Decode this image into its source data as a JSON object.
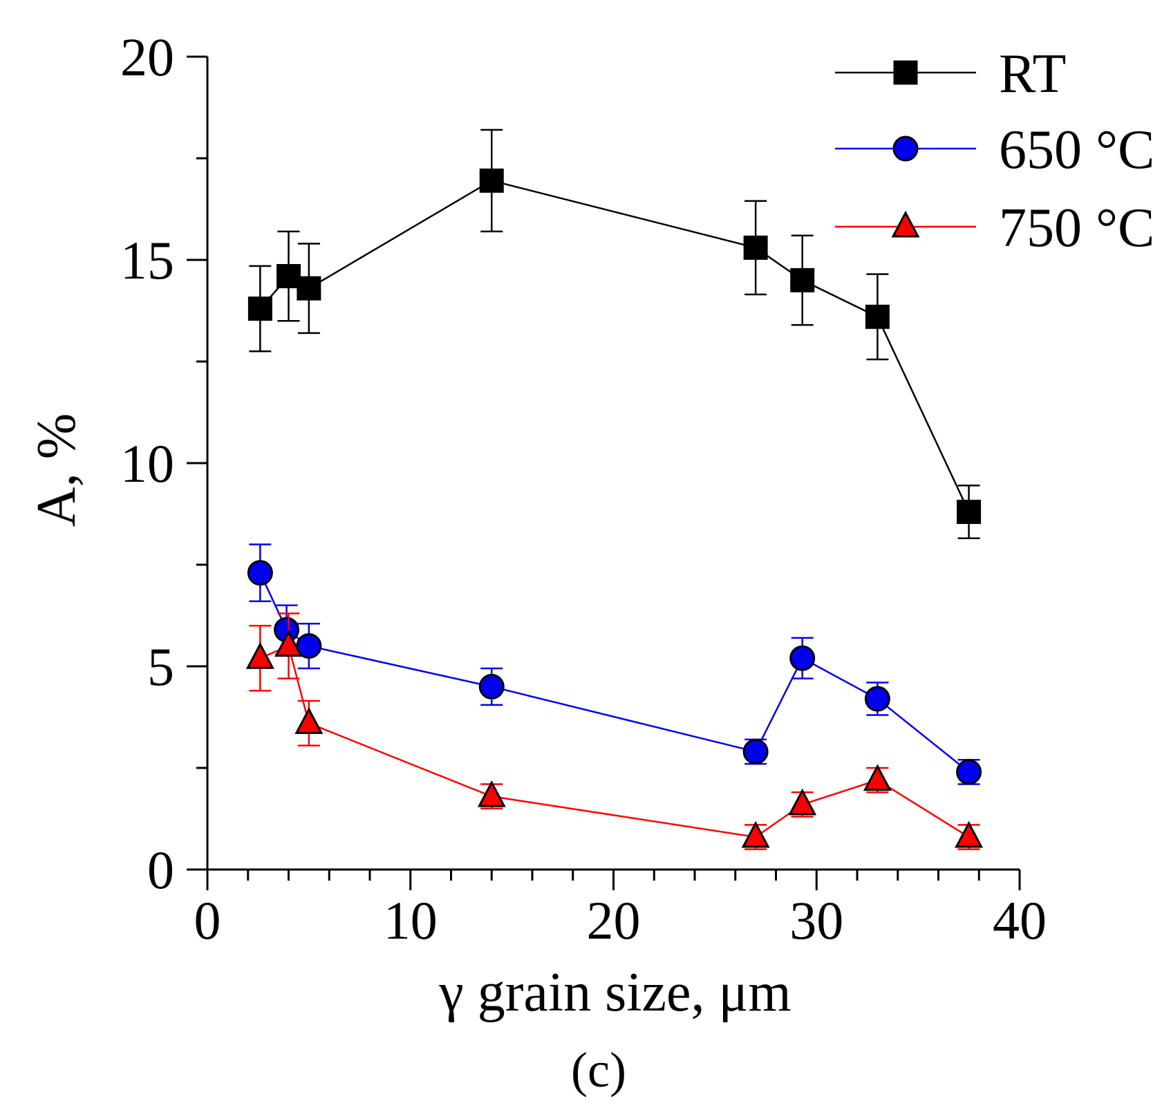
{
  "chart_data": {
    "type": "line",
    "title": "",
    "xlabel": "γ grain size, μm",
    "ylabel": "A, %",
    "panel_label": "(c)",
    "xlim": [
      0,
      40
    ],
    "ylim": [
      0,
      20
    ],
    "x_ticks": [
      "0",
      "10",
      "20",
      "30",
      "40"
    ],
    "y_ticks": [
      "0",
      "5",
      "10",
      "15",
      "20"
    ],
    "x_minor_step": 2,
    "y_minor_step": 2.5,
    "legend_position": "top-right",
    "series": [
      {
        "name": "RT",
        "color": "#000000",
        "marker": "square",
        "x": [
          2.6,
          4.0,
          5.0,
          14.0,
          27.0,
          29.3,
          33.0,
          37.5
        ],
        "y": [
          13.8,
          14.6,
          14.3,
          16.95,
          15.3,
          14.5,
          13.6,
          8.8
        ],
        "err": [
          1.05,
          1.1,
          1.1,
          1.25,
          1.15,
          1.1,
          1.05,
          0.65
        ]
      },
      {
        "name": "650 °C",
        "color": "#0000ee",
        "marker": "circle",
        "x": [
          2.6,
          3.9,
          5.0,
          14.0,
          27.0,
          29.3,
          33.0,
          37.5
        ],
        "y": [
          7.3,
          5.9,
          5.5,
          4.5,
          2.9,
          5.2,
          4.2,
          2.4
        ],
        "err": [
          0.7,
          0.6,
          0.55,
          0.45,
          0.3,
          0.5,
          0.4,
          0.3
        ]
      },
      {
        "name": "750 °C",
        "color": "#ff0000",
        "marker": "triangle",
        "x": [
          2.6,
          4.0,
          5.0,
          14.0,
          27.0,
          29.3,
          33.0,
          37.5
        ],
        "y": [
          5.2,
          5.5,
          3.6,
          1.8,
          0.8,
          1.6,
          2.2,
          0.8
        ],
        "err": [
          0.8,
          0.8,
          0.55,
          0.3,
          0.3,
          0.3,
          0.3,
          0.3
        ]
      }
    ]
  }
}
